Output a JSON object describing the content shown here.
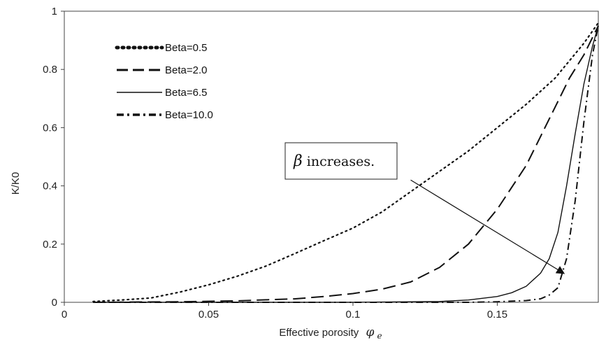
{
  "chart_data": {
    "type": "line",
    "title": "",
    "xlabel": "Effective porosity",
    "xlabel_symbol": "φ",
    "xlabel_subscript": "e",
    "ylabel": "K/K0",
    "xlim": [
      0,
      0.185
    ],
    "ylim": [
      0,
      1
    ],
    "xticks": [
      0,
      0.05,
      0.1,
      0.15
    ],
    "xtick_labels": [
      "0",
      "0.05",
      "0.1",
      "0.15"
    ],
    "yticks": [
      0,
      0.2,
      0.4,
      0.6,
      0.8,
      1
    ],
    "ytick_labels": [
      "0",
      "0.2",
      "0.4",
      "0.6",
      "0.8",
      "1"
    ],
    "grid": false,
    "legend_position": "top-left",
    "series": [
      {
        "name": "Beta=0.5",
        "dash": "dotted",
        "x": [
          0.01,
          0.02,
          0.03,
          0.04,
          0.05,
          0.06,
          0.07,
          0.08,
          0.09,
          0.1,
          0.11,
          0.12,
          0.13,
          0.14,
          0.15,
          0.16,
          0.17,
          0.18,
          0.185
        ],
        "y": [
          0.003,
          0.008,
          0.015,
          0.035,
          0.06,
          0.09,
          0.125,
          0.168,
          0.212,
          0.255,
          0.31,
          0.38,
          0.45,
          0.52,
          0.6,
          0.68,
          0.77,
          0.89,
          0.96
        ]
      },
      {
        "name": "Beta=2.0",
        "dash": "long-dash",
        "x": [
          0.01,
          0.04,
          0.06,
          0.08,
          0.09,
          0.1,
          0.11,
          0.12,
          0.13,
          0.14,
          0.15,
          0.16,
          0.17,
          0.175,
          0.18,
          0.185
        ],
        "y": [
          0,
          0.002,
          0.005,
          0.012,
          0.02,
          0.03,
          0.045,
          0.07,
          0.12,
          0.2,
          0.32,
          0.47,
          0.67,
          0.77,
          0.85,
          0.95
        ]
      },
      {
        "name": "Beta=6.5",
        "dash": "solid",
        "x": [
          0.01,
          0.1,
          0.13,
          0.14,
          0.15,
          0.155,
          0.16,
          0.165,
          0.168,
          0.171,
          0.174,
          0.177,
          0.18,
          0.183,
          0.185
        ],
        "y": [
          0,
          0,
          0.003,
          0.008,
          0.02,
          0.033,
          0.055,
          0.1,
          0.15,
          0.24,
          0.4,
          0.58,
          0.75,
          0.88,
          0.95
        ]
      },
      {
        "name": "Beta=10.0",
        "dash": "dash-dot",
        "x": [
          0.01,
          0.1,
          0.14,
          0.15,
          0.16,
          0.165,
          0.168,
          0.171,
          0.174,
          0.177,
          0.18,
          0.183,
          0.185
        ],
        "y": [
          0,
          0,
          0,
          0.002,
          0.006,
          0.012,
          0.025,
          0.05,
          0.15,
          0.35,
          0.62,
          0.85,
          0.95
        ]
      }
    ],
    "annotation": {
      "symbol": "β",
      "text": " increases.",
      "arrow_from": [
        0.12,
        0.42
      ],
      "arrow_to": [
        0.173,
        0.1
      ]
    }
  }
}
